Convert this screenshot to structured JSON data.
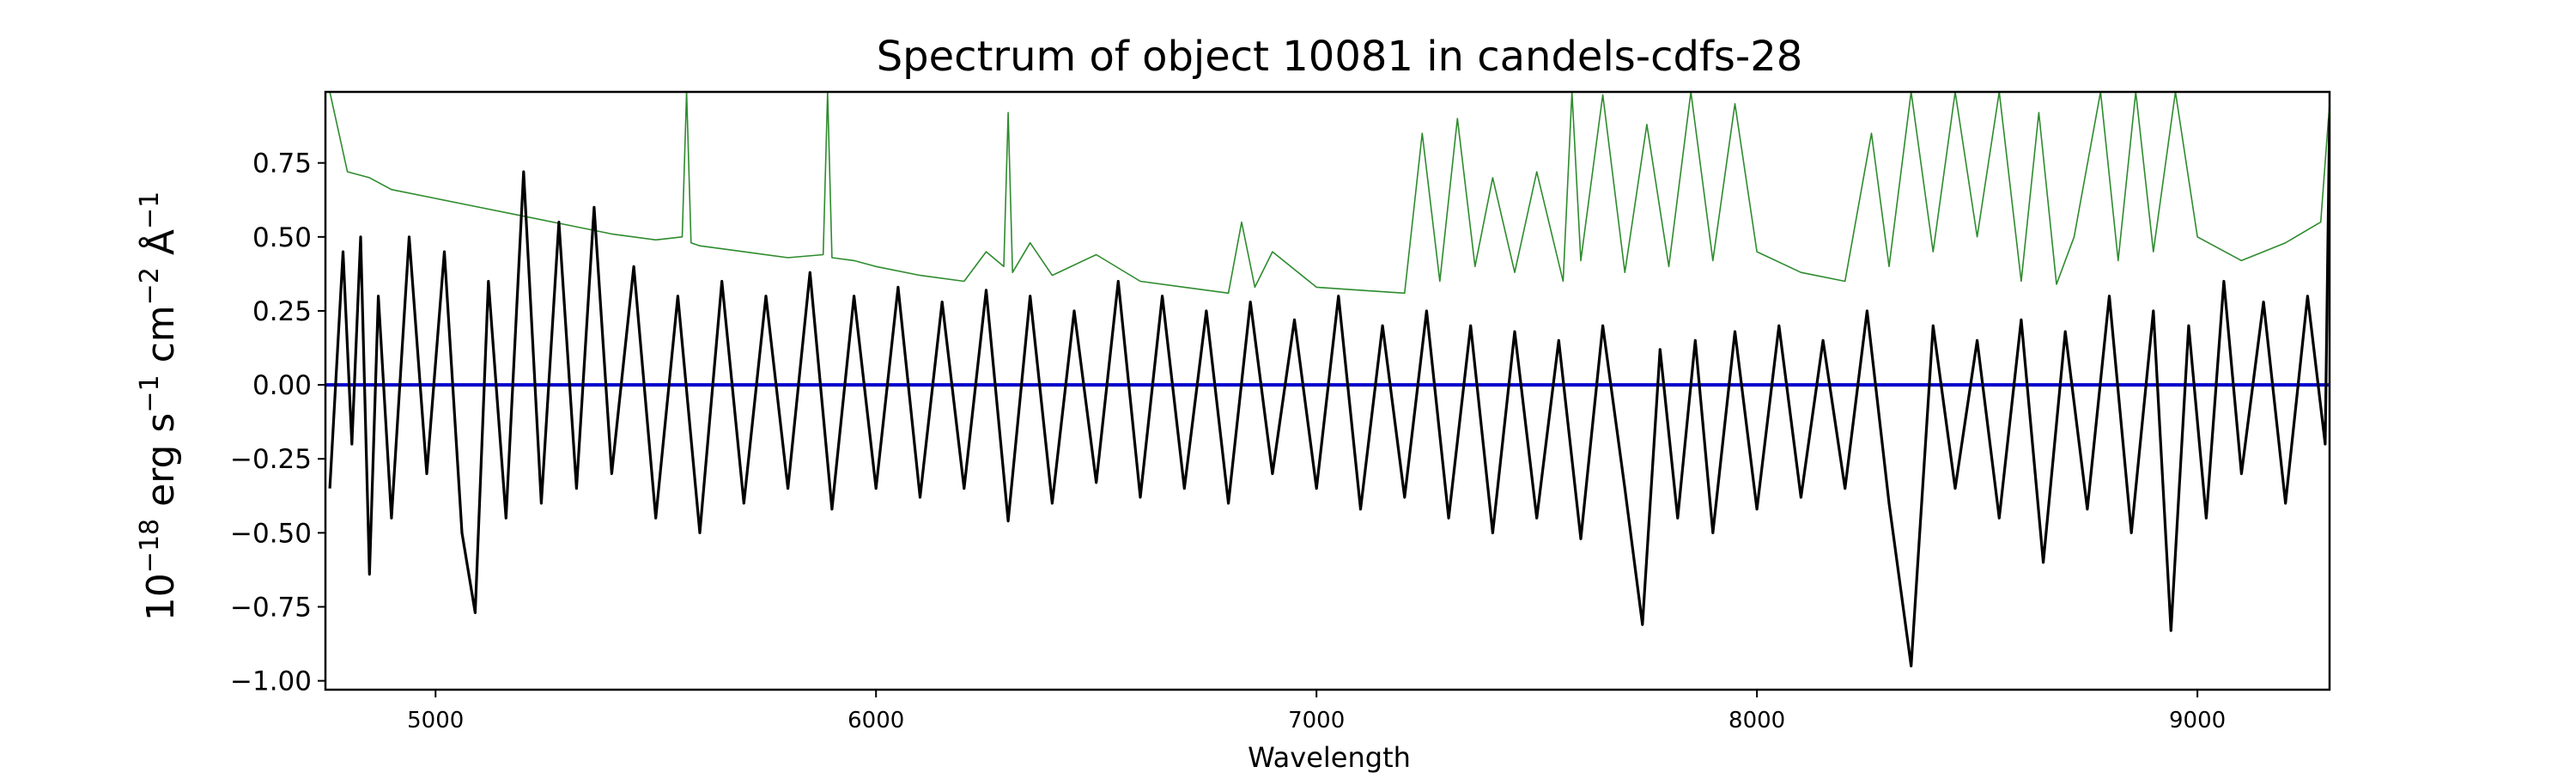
{
  "chart_data": {
    "type": "line",
    "title": "Spectrum of object 10081 in candels-cdfs-28",
    "xlabel": "Wavelength",
    "ylabel": {
      "base": "10",
      "exp1": "−18",
      "unit1": " erg s",
      "exp2": "−1",
      "unit2": " cm",
      "exp3": "−2",
      "unit3": " Å",
      "exp4": "−1"
    },
    "xlim": [
      4750,
      9300
    ],
    "ylim": [
      -1.03,
      0.99
    ],
    "xticks": [
      5000,
      6000,
      7000,
      8000,
      9000
    ],
    "xtick_labels": [
      "5000",
      "6000",
      "7000",
      "8000",
      "9000"
    ],
    "yticks": [
      -1.0,
      -0.75,
      -0.5,
      -0.25,
      0.0,
      0.25,
      0.5,
      0.75
    ],
    "ytick_labels": [
      "−1.00",
      "−0.75",
      "−0.50",
      "−0.25",
      "0.00",
      "0.25",
      "0.50",
      "0.75"
    ],
    "grid": false,
    "legend": "none",
    "series": [
      {
        "role": "error",
        "color": "#2e8b2e",
        "x": [
          4760,
          4800,
          4850,
          4900,
          5000,
          5100,
          5200,
          5300,
          5400,
          5500,
          5560,
          5570,
          5580,
          5600,
          5700,
          5800,
          5880,
          5890,
          5900,
          5950,
          6000,
          6100,
          6200,
          6250,
          6290,
          6300,
          6310,
          6350,
          6400,
          6500,
          6600,
          6700,
          6800,
          6830,
          6860,
          6900,
          7000,
          7100,
          7200,
          7240,
          7280,
          7320,
          7360,
          7400,
          7450,
          7500,
          7560,
          7580,
          7600,
          7650,
          7700,
          7750,
          7800,
          7850,
          7900,
          7950,
          8000,
          8100,
          8200,
          8260,
          8300,
          8350,
          8400,
          8450,
          8500,
          8550,
          8600,
          8640,
          8680,
          8720,
          8780,
          8820,
          8860,
          8900,
          8950,
          9000,
          9100,
          9200,
          9280,
          9300
        ],
        "y": [
          0.99,
          0.72,
          0.7,
          0.66,
          0.63,
          0.6,
          0.57,
          0.54,
          0.51,
          0.49,
          0.5,
          0.99,
          0.48,
          0.47,
          0.45,
          0.43,
          0.44,
          0.99,
          0.43,
          0.42,
          0.4,
          0.37,
          0.35,
          0.45,
          0.4,
          0.92,
          0.38,
          0.48,
          0.37,
          0.44,
          0.35,
          0.33,
          0.31,
          0.55,
          0.33,
          0.45,
          0.33,
          0.32,
          0.31,
          0.85,
          0.35,
          0.9,
          0.4,
          0.7,
          0.38,
          0.72,
          0.35,
          0.99,
          0.42,
          0.98,
          0.38,
          0.88,
          0.4,
          0.99,
          0.42,
          0.95,
          0.45,
          0.38,
          0.35,
          0.85,
          0.4,
          0.99,
          0.45,
          0.99,
          0.5,
          0.99,
          0.35,
          0.92,
          0.34,
          0.5,
          0.99,
          0.42,
          0.99,
          0.45,
          0.99,
          0.5,
          0.42,
          0.48,
          0.55,
          0.95
        ]
      },
      {
        "role": "flux",
        "color": "#000000",
        "x": [
          4760,
          4790,
          4810,
          4830,
          4850,
          4870,
          4900,
          4940,
          4980,
          5020,
          5060,
          5090,
          5120,
          5160,
          5200,
          5240,
          5280,
          5320,
          5360,
          5400,
          5450,
          5500,
          5550,
          5600,
          5650,
          5700,
          5750,
          5800,
          5850,
          5900,
          5950,
          6000,
          6050,
          6100,
          6150,
          6200,
          6250,
          6300,
          6350,
          6400,
          6450,
          6500,
          6550,
          6600,
          6650,
          6700,
          6750,
          6800,
          6850,
          6900,
          6950,
          7000,
          7050,
          7100,
          7150,
          7200,
          7250,
          7300,
          7350,
          7400,
          7450,
          7500,
          7550,
          7600,
          7650,
          7700,
          7740,
          7780,
          7820,
          7860,
          7900,
          7950,
          8000,
          8050,
          8100,
          8150,
          8200,
          8250,
          8300,
          8350,
          8400,
          8450,
          8500,
          8550,
          8600,
          8650,
          8700,
          8750,
          8800,
          8850,
          8900,
          8940,
          8980,
          9020,
          9060,
          9100,
          9150,
          9200,
          9250,
          9290,
          9300
        ],
        "y": [
          -0.35,
          0.45,
          -0.2,
          0.5,
          -0.64,
          0.3,
          -0.45,
          0.5,
          -0.3,
          0.45,
          -0.5,
          -0.77,
          0.35,
          -0.45,
          0.72,
          -0.4,
          0.55,
          -0.35,
          0.6,
          -0.3,
          0.4,
          -0.45,
          0.3,
          -0.5,
          0.35,
          -0.4,
          0.3,
          -0.35,
          0.38,
          -0.42,
          0.3,
          -0.35,
          0.33,
          -0.38,
          0.28,
          -0.35,
          0.32,
          -0.46,
          0.3,
          -0.4,
          0.25,
          -0.33,
          0.35,
          -0.38,
          0.3,
          -0.35,
          0.25,
          -0.4,
          0.28,
          -0.3,
          0.22,
          -0.35,
          0.3,
          -0.42,
          0.2,
          -0.38,
          0.25,
          -0.45,
          0.2,
          -0.5,
          0.18,
          -0.45,
          0.15,
          -0.52,
          0.2,
          -0.35,
          -0.81,
          0.12,
          -0.45,
          0.15,
          -0.5,
          0.18,
          -0.42,
          0.2,
          -0.38,
          0.15,
          -0.35,
          0.25,
          -0.4,
          -0.95,
          0.2,
          -0.35,
          0.15,
          -0.45,
          0.22,
          -0.6,
          0.18,
          -0.42,
          0.3,
          -0.5,
          0.25,
          -0.83,
          0.2,
          -0.45,
          0.35,
          -0.3,
          0.28,
          -0.4,
          0.3,
          -0.2,
          0.9
        ]
      },
      {
        "role": "model",
        "color": "#0000cc",
        "x": [
          4750,
          9300
        ],
        "y": [
          0.0,
          0.0
        ]
      }
    ]
  }
}
